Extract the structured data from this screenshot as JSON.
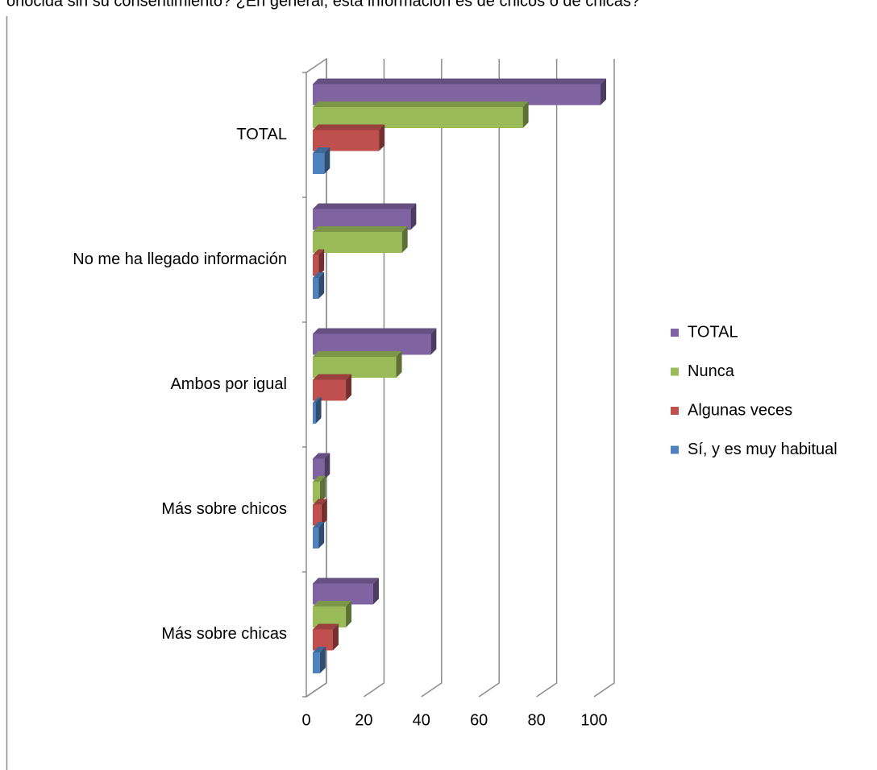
{
  "chart_data": {
    "type": "bar3d",
    "title": "onocida sin su consentimiento?     ¿En general, esta información es de chicos o de chicas?",
    "categories": [
      "TOTAL",
      "No me ha llegado información",
      "Ambos por igual",
      "Más sobre chicos",
      "Más sobre chicas"
    ],
    "series": [
      {
        "name": "TOTAL",
        "color": "#8064a2",
        "values": [
          100,
          34,
          41,
          4,
          21
        ]
      },
      {
        "name": "Nunca",
        "color": "#9bbb59",
        "values": [
          73,
          31,
          29,
          2.5,
          11.5
        ]
      },
      {
        "name": "Algunas veces",
        "color": "#c0504d",
        "values": [
          23,
          2,
          11.5,
          3,
          7
        ]
      },
      {
        "name": "Sí, y es muy habitual",
        "color": "#4f81bd",
        "values": [
          4,
          2,
          1,
          2,
          2.5
        ]
      }
    ],
    "xlim": [
      0,
      100
    ],
    "xticks": [
      0,
      20,
      40,
      60,
      80,
      100
    ],
    "grid": true,
    "legend": "right"
  }
}
